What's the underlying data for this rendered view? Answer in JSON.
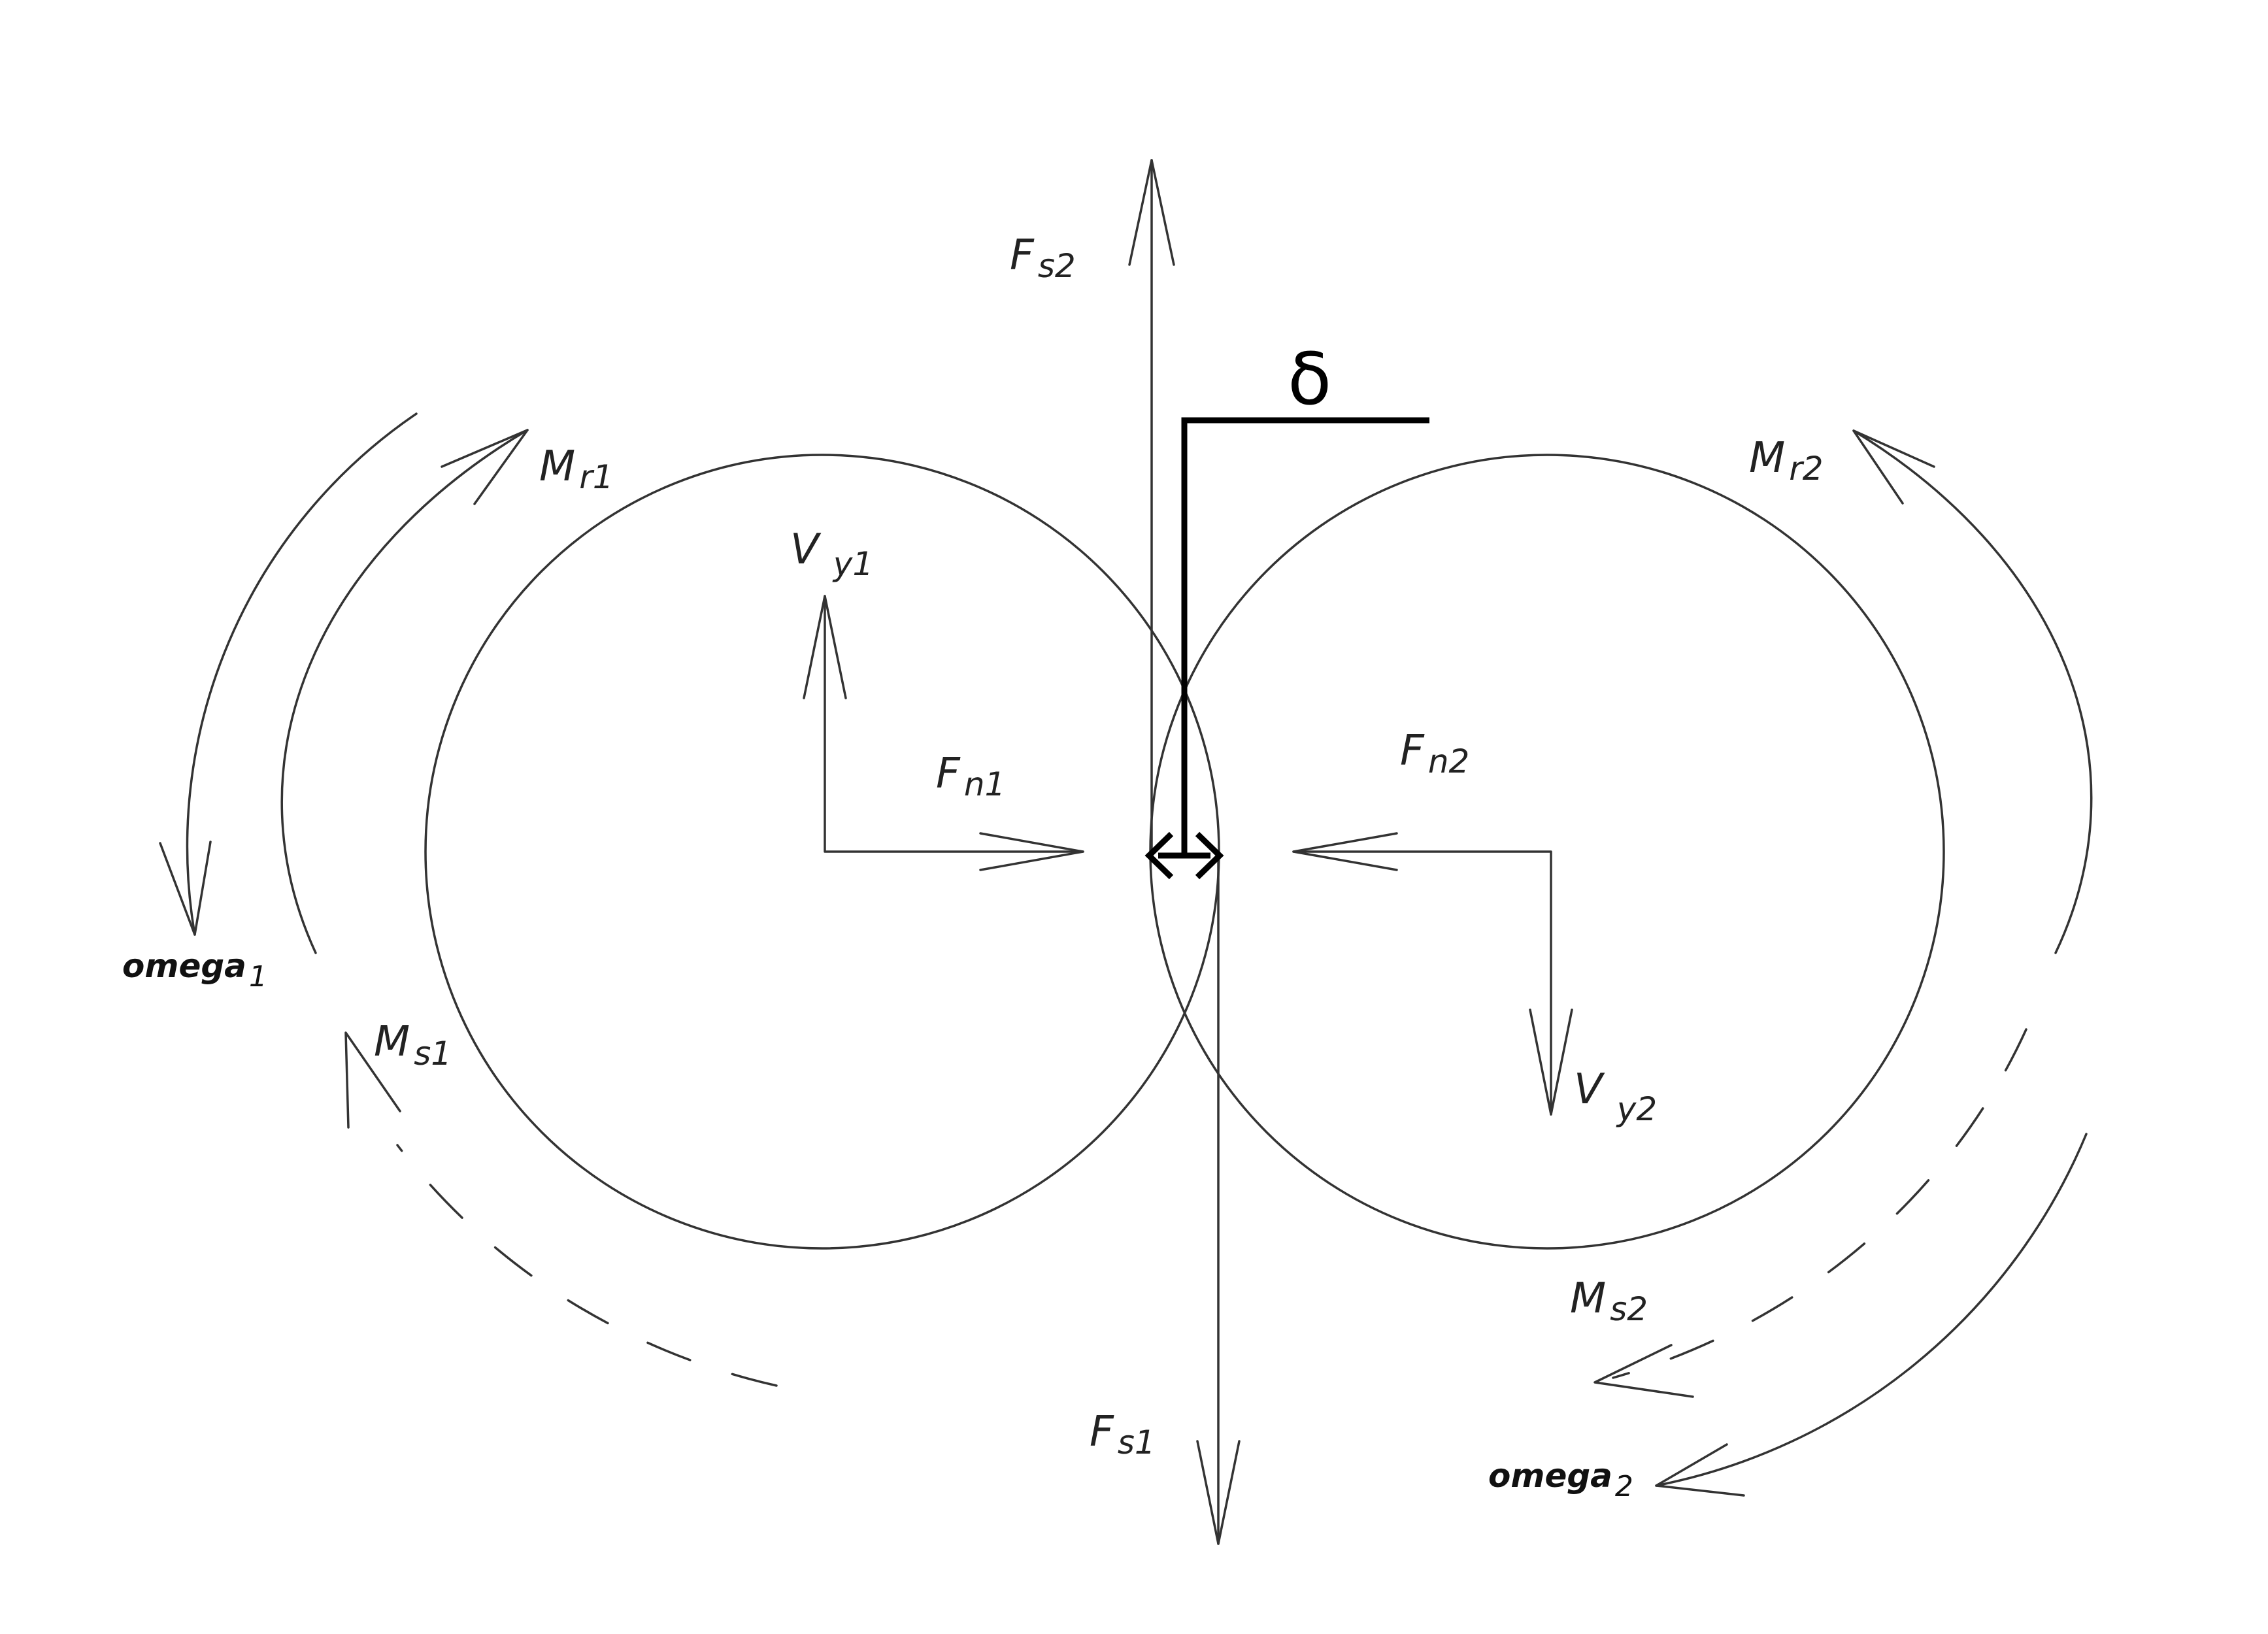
{
  "labels": {
    "fs2": {
      "main": "F",
      "sub": "s2"
    },
    "fs1": {
      "main": "F",
      "sub": "s1"
    },
    "fn1": {
      "main": "F",
      "sub": "n1"
    },
    "fn2": {
      "main": "F",
      "sub": "n2"
    },
    "vy1": {
      "main": "V",
      "sub": "y1"
    },
    "vy2": {
      "main": "V",
      "sub": "y2"
    },
    "mr1": {
      "main": "M",
      "sub": "r1"
    },
    "mr2": {
      "main": "M",
      "sub": "r2"
    },
    "ms1": {
      "main": "M",
      "sub": "s1"
    },
    "ms2": {
      "main": "M",
      "sub": "s2"
    },
    "omega1": {
      "main": "omega",
      "sub": "1"
    },
    "omega2": {
      "main": "omega",
      "sub": "2"
    },
    "delta": "δ"
  }
}
